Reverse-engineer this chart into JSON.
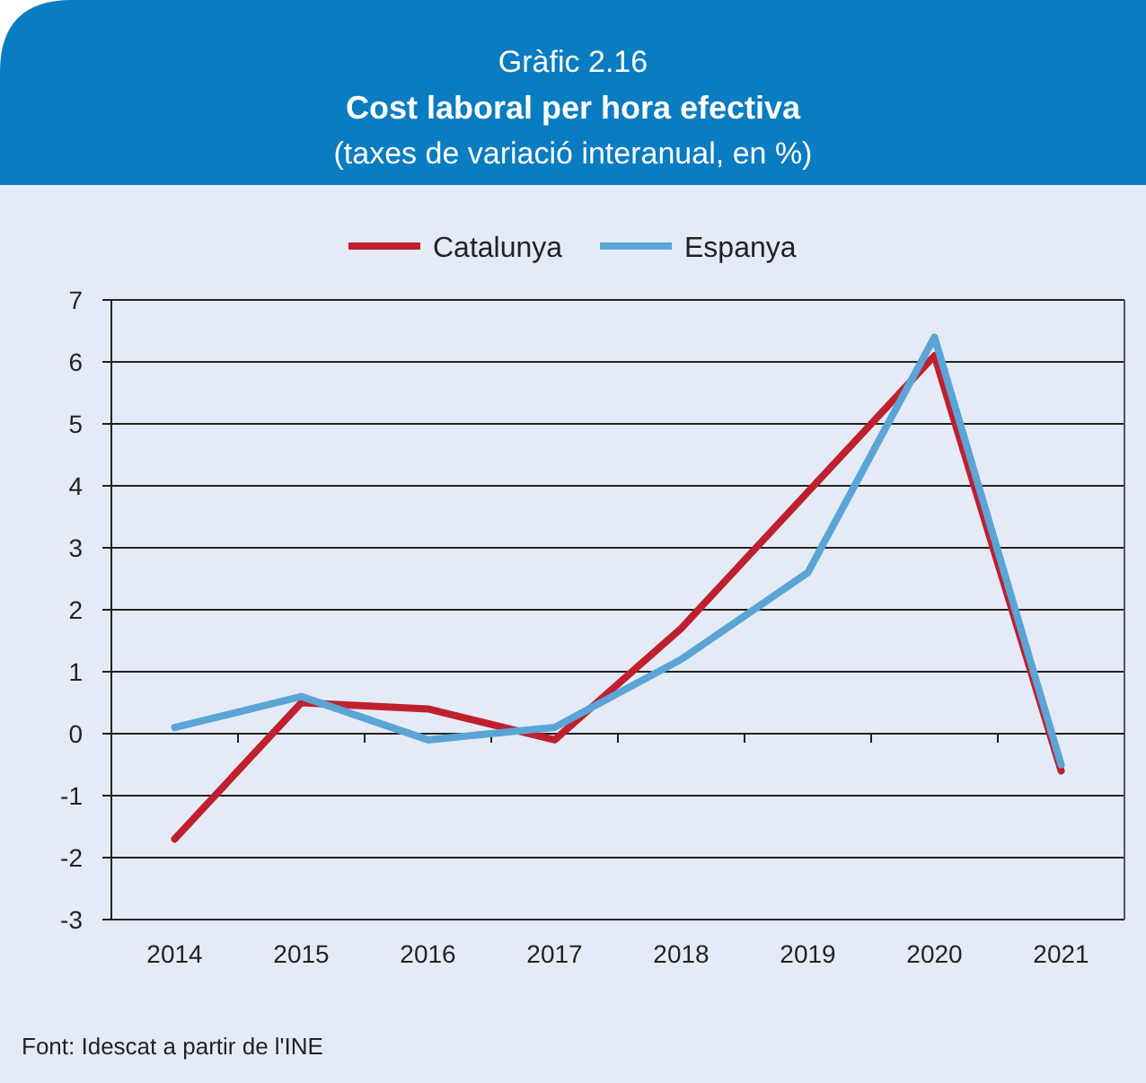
{
  "chart_data": {
    "type": "line",
    "title": "Cost laboral per hora efectiva",
    "subtitle": "(taxes de variació interanual, en %)",
    "annotations": [
      "Gràfic 2.16",
      "Font: Idescat a partir de l'INE"
    ],
    "categories": [
      "2014",
      "2015",
      "2016",
      "2017",
      "2018",
      "2019",
      "2020",
      "2021"
    ],
    "series": [
      {
        "name": "Catalunya",
        "color": "#c0202e",
        "values": [
          -1.7,
          0.5,
          0.4,
          -0.1,
          1.7,
          3.9,
          6.1,
          -0.6
        ]
      },
      {
        "name": "Espanya",
        "color": "#5aa5d6",
        "values": [
          0.1,
          0.6,
          -0.1,
          0.1,
          1.2,
          2.6,
          6.4,
          -0.5
        ]
      }
    ],
    "ylim": [
      -3,
      7
    ],
    "yticks": [
      -3,
      -2,
      -1,
      0,
      1,
      2,
      3,
      4,
      5,
      6,
      7
    ],
    "grid": "y",
    "legend": "top",
    "marker": "none",
    "line_style": "solid"
  }
}
